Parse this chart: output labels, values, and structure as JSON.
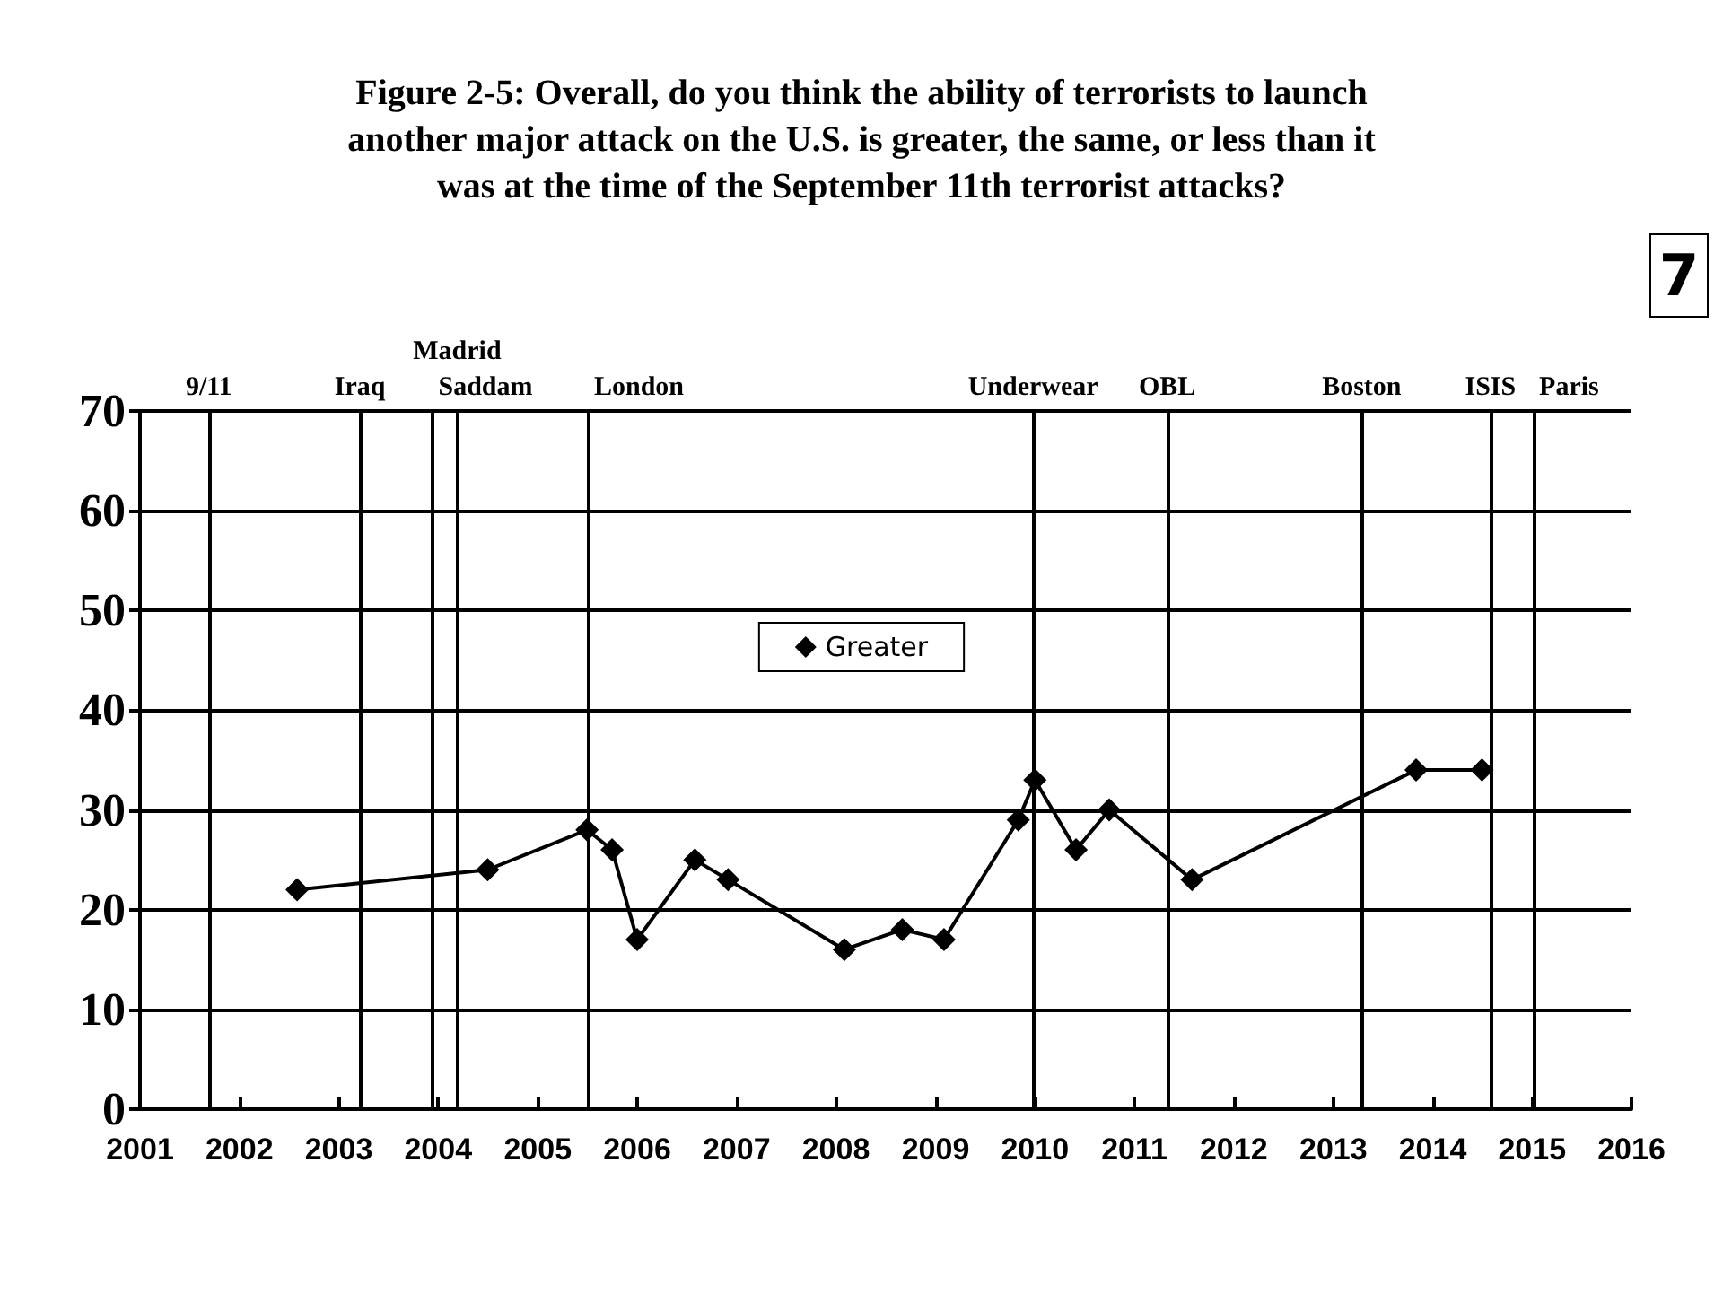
{
  "chart_data": {
    "type": "line",
    "title": "Figure 2-5: Overall, do you think the ability of terrorists to launch\nanother major attack on the U.S. is greater, the same, or less than it\nwas at the time of the September 11th terrorist attacks?",
    "x": [
      "2002-08",
      "2004-07",
      "2005-07",
      "2005-10",
      "2006-01",
      "2006-08",
      "2006-12",
      "2008-02",
      "2008-09",
      "2009-02",
      "2009-11",
      "2010-01",
      "2010-06",
      "2010-10",
      "2011-08",
      "2013-11",
      "2014-07"
    ],
    "series": [
      {
        "name": "Greater",
        "color": "#000000",
        "values": [
          22,
          24,
          28,
          26,
          17,
          25,
          23,
          16,
          18,
          17,
          29,
          33,
          26,
          30,
          23,
          34,
          34
        ]
      }
    ],
    "xlim": [
      "2001",
      "2016"
    ],
    "xticks": [
      "2001",
      "2002",
      "2003",
      "2004",
      "2005",
      "2006",
      "2007",
      "2008",
      "2009",
      "2010",
      "2011",
      "2012",
      "2013",
      "2014",
      "2015",
      "2016"
    ],
    "ylim": [
      0,
      70
    ],
    "yticks": [
      0,
      10,
      20,
      30,
      40,
      50,
      60,
      70
    ],
    "ref_lines": [
      {
        "axis": "x",
        "value": "2001-09-11",
        "label": "9/11"
      },
      {
        "axis": "x",
        "value": "2003-03-20",
        "label": "Iraq"
      },
      {
        "axis": "x",
        "value": "2003-12-13",
        "label": "Saddam"
      },
      {
        "axis": "x",
        "value": "2004-03-11",
        "label": "Madrid"
      },
      {
        "axis": "x",
        "value": "2005-07-07",
        "label": "London"
      },
      {
        "axis": "x",
        "value": "2009-12-25",
        "label": "Underwear"
      },
      {
        "axis": "x",
        "value": "2011-05-02",
        "label": "OBL"
      },
      {
        "axis": "x",
        "value": "2013-04-15",
        "label": "Boston"
      },
      {
        "axis": "x",
        "value": "2014-08",
        "label": "ISIS"
      },
      {
        "axis": "x",
        "value": "2015-01-07",
        "label": "Paris"
      }
    ],
    "annotations": [
      "7"
    ],
    "grid": "y",
    "legend": "center",
    "marker": "diamond",
    "line_style": "solid"
  }
}
